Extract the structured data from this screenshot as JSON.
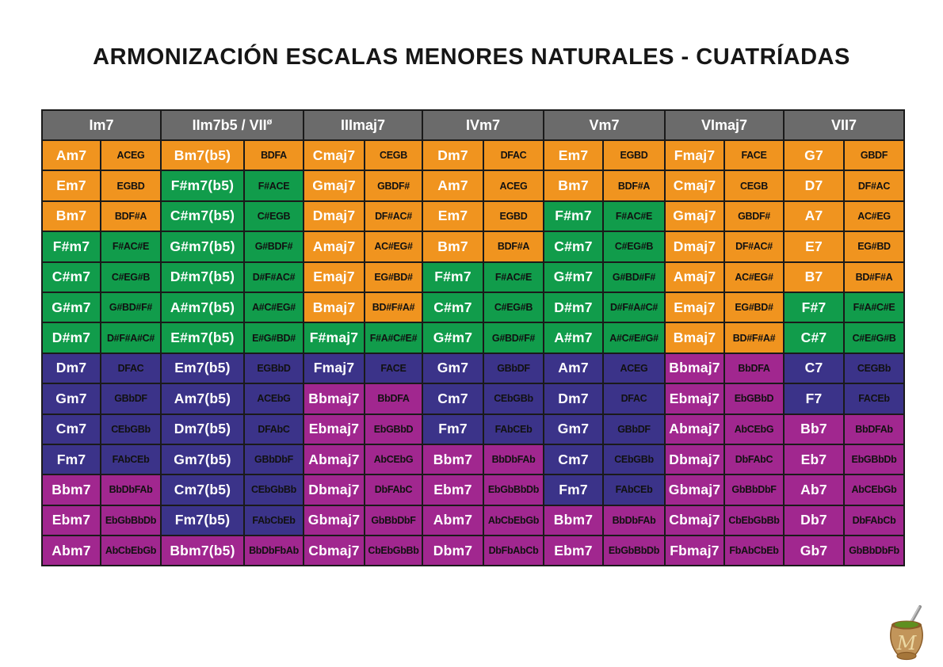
{
  "title": "ARMONIZACIÓN ESCALAS MENORES NATURALES - CUATRÍADAS",
  "colors": {
    "orange": "#F0941F",
    "green": "#119C4B",
    "indigo": "#3B3389",
    "magenta": "#A1278F",
    "header_bg": "#6B6B6B",
    "header_text": "#FFFFFF",
    "chord_text": "#FFFFFF",
    "notes_text": "#111111",
    "border": "#1A1A1A",
    "background": "#FFFFFF"
  },
  "logo": {
    "letter": "M",
    "description": "mate-gourd-with-bombilla"
  },
  "chart_data": {
    "type": "table",
    "title": "ARMONIZACIÓN ESCALAS MENORES NATURALES - CUATRÍADAS",
    "column_groups": [
      {
        "label": "Im7",
        "sup": ""
      },
      {
        "label": "IIm7b5 / VII",
        "sup": "ø"
      },
      {
        "label": "IIImaj7",
        "sup": ""
      },
      {
        "label": "IVm7",
        "sup": ""
      },
      {
        "label": "Vm7",
        "sup": ""
      },
      {
        "label": "VImaj7",
        "sup": ""
      },
      {
        "label": "VII7",
        "sup": ""
      }
    ],
    "subcolumns_per_group": [
      "chord",
      "notes"
    ],
    "color_legend": {
      "orange": "natural-root chord (sharp keys)",
      "green": "sharp-root chord",
      "indigo": "natural-root chord (flat keys)",
      "magenta": "flat-root chord"
    },
    "rows": [
      [
        {
          "chord": "Am7",
          "notes": "ACEG",
          "color": "orange"
        },
        {
          "chord": "Bm7(b5)",
          "notes": "BDFA",
          "color": "orange"
        },
        {
          "chord": "Cmaj7",
          "notes": "CEGB",
          "color": "orange"
        },
        {
          "chord": "Dm7",
          "notes": "DFAC",
          "color": "orange"
        },
        {
          "chord": "Em7",
          "notes": "EGBD",
          "color": "orange"
        },
        {
          "chord": "Fmaj7",
          "notes": "FACE",
          "color": "orange"
        },
        {
          "chord": "G7",
          "notes": "GBDF",
          "color": "orange"
        }
      ],
      [
        {
          "chord": "Em7",
          "notes": "EGBD",
          "color": "orange"
        },
        {
          "chord": "F#m7(b5)",
          "notes": "F#ACE",
          "color": "green"
        },
        {
          "chord": "Gmaj7",
          "notes": "GBDF#",
          "color": "orange"
        },
        {
          "chord": "Am7",
          "notes": "ACEG",
          "color": "orange"
        },
        {
          "chord": "Bm7",
          "notes": "BDF#A",
          "color": "orange"
        },
        {
          "chord": "Cmaj7",
          "notes": "CEGB",
          "color": "orange"
        },
        {
          "chord": "D7",
          "notes": "DF#AC",
          "color": "orange"
        }
      ],
      [
        {
          "chord": "Bm7",
          "notes": "BDF#A",
          "color": "orange"
        },
        {
          "chord": "C#m7(b5)",
          "notes": "C#EGB",
          "color": "green"
        },
        {
          "chord": "Dmaj7",
          "notes": "DF#AC#",
          "color": "orange"
        },
        {
          "chord": "Em7",
          "notes": "EGBD",
          "color": "orange"
        },
        {
          "chord": "F#m7",
          "notes": "F#AC#E",
          "color": "green"
        },
        {
          "chord": "Gmaj7",
          "notes": "GBDF#",
          "color": "orange"
        },
        {
          "chord": "A7",
          "notes": "AC#EG",
          "color": "orange"
        }
      ],
      [
        {
          "chord": "F#m7",
          "notes": "F#AC#E",
          "color": "green"
        },
        {
          "chord": "G#m7(b5)",
          "notes": "G#BDF#",
          "color": "green"
        },
        {
          "chord": "Amaj7",
          "notes": "AC#EG#",
          "color": "orange"
        },
        {
          "chord": "Bm7",
          "notes": "BDF#A",
          "color": "orange"
        },
        {
          "chord": "C#m7",
          "notes": "C#EG#B",
          "color": "green"
        },
        {
          "chord": "Dmaj7",
          "notes": "DF#AC#",
          "color": "orange"
        },
        {
          "chord": "E7",
          "notes": "EG#BD",
          "color": "orange"
        }
      ],
      [
        {
          "chord": "C#m7",
          "notes": "C#EG#B",
          "color": "green"
        },
        {
          "chord": "D#m7(b5)",
          "notes": "D#F#AC#",
          "color": "green"
        },
        {
          "chord": "Emaj7",
          "notes": "EG#BD#",
          "color": "orange"
        },
        {
          "chord": "F#m7",
          "notes": "F#AC#E",
          "color": "green"
        },
        {
          "chord": "G#m7",
          "notes": "G#BD#F#",
          "color": "green"
        },
        {
          "chord": "Amaj7",
          "notes": "AC#EG#",
          "color": "orange"
        },
        {
          "chord": "B7",
          "notes": "BD#F#A",
          "color": "orange"
        }
      ],
      [
        {
          "chord": "G#m7",
          "notes": "G#BD#F#",
          "color": "green"
        },
        {
          "chord": "A#m7(b5)",
          "notes": "A#C#EG#",
          "color": "green"
        },
        {
          "chord": "Bmaj7",
          "notes": "BD#F#A#",
          "color": "orange"
        },
        {
          "chord": "C#m7",
          "notes": "C#EG#B",
          "color": "green"
        },
        {
          "chord": "D#m7",
          "notes": "D#F#A#C#",
          "color": "green"
        },
        {
          "chord": "Emaj7",
          "notes": "EG#BD#",
          "color": "orange"
        },
        {
          "chord": "F#7",
          "notes": "F#A#C#E",
          "color": "green"
        }
      ],
      [
        {
          "chord": "D#m7",
          "notes": "D#F#A#C#",
          "color": "green"
        },
        {
          "chord": "E#m7(b5)",
          "notes": "E#G#BD#",
          "color": "green"
        },
        {
          "chord": "F#maj7",
          "notes": "F#A#C#E#",
          "color": "green"
        },
        {
          "chord": "G#m7",
          "notes": "G#BD#F#",
          "color": "green"
        },
        {
          "chord": "A#m7",
          "notes": "A#C#E#G#",
          "color": "green"
        },
        {
          "chord": "Bmaj7",
          "notes": "BD#F#A#",
          "color": "orange"
        },
        {
          "chord": "C#7",
          "notes": "C#E#G#B",
          "color": "green"
        }
      ],
      [
        {
          "chord": "Dm7",
          "notes": "DFAC",
          "color": "indigo"
        },
        {
          "chord": "Em7(b5)",
          "notes": "EGBbD",
          "color": "indigo"
        },
        {
          "chord": "Fmaj7",
          "notes": "FACE",
          "color": "indigo"
        },
        {
          "chord": "Gm7",
          "notes": "GBbDF",
          "color": "indigo"
        },
        {
          "chord": "Am7",
          "notes": "ACEG",
          "color": "indigo"
        },
        {
          "chord": "Bbmaj7",
          "notes": "BbDFA",
          "color": "magenta"
        },
        {
          "chord": "C7",
          "notes": "CEGBb",
          "color": "indigo"
        }
      ],
      [
        {
          "chord": "Gm7",
          "notes": "GBbDF",
          "color": "indigo"
        },
        {
          "chord": "Am7(b5)",
          "notes": "ACEbG",
          "color": "indigo"
        },
        {
          "chord": "Bbmaj7",
          "notes": "BbDFA",
          "color": "magenta"
        },
        {
          "chord": "Cm7",
          "notes": "CEbGBb",
          "color": "indigo"
        },
        {
          "chord": "Dm7",
          "notes": "DFAC",
          "color": "indigo"
        },
        {
          "chord": "Ebmaj7",
          "notes": "EbGBbD",
          "color": "magenta"
        },
        {
          "chord": "F7",
          "notes": "FACEb",
          "color": "indigo"
        }
      ],
      [
        {
          "chord": "Cm7",
          "notes": "CEbGBb",
          "color": "indigo"
        },
        {
          "chord": "Dm7(b5)",
          "notes": "DFAbC",
          "color": "indigo"
        },
        {
          "chord": "Ebmaj7",
          "notes": "EbGBbD",
          "color": "magenta"
        },
        {
          "chord": "Fm7",
          "notes": "FAbCEb",
          "color": "indigo"
        },
        {
          "chord": "Gm7",
          "notes": "GBbDF",
          "color": "indigo"
        },
        {
          "chord": "Abmaj7",
          "notes": "AbCEbG",
          "color": "magenta"
        },
        {
          "chord": "Bb7",
          "notes": "BbDFAb",
          "color": "magenta"
        }
      ],
      [
        {
          "chord": "Fm7",
          "notes": "FAbCEb",
          "color": "indigo"
        },
        {
          "chord": "Gm7(b5)",
          "notes": "GBbDbF",
          "color": "indigo"
        },
        {
          "chord": "Abmaj7",
          "notes": "AbCEbG",
          "color": "magenta"
        },
        {
          "chord": "Bbm7",
          "notes": "BbDbFAb",
          "color": "magenta"
        },
        {
          "chord": "Cm7",
          "notes": "CEbGBb",
          "color": "indigo"
        },
        {
          "chord": "Dbmaj7",
          "notes": "DbFAbC",
          "color": "magenta"
        },
        {
          "chord": "Eb7",
          "notes": "EbGBbDb",
          "color": "magenta"
        }
      ],
      [
        {
          "chord": "Bbm7",
          "notes": "BbDbFAb",
          "color": "magenta"
        },
        {
          "chord": "Cm7(b5)",
          "notes": "CEbGbBb",
          "color": "indigo"
        },
        {
          "chord": "Dbmaj7",
          "notes": "DbFAbC",
          "color": "magenta"
        },
        {
          "chord": "Ebm7",
          "notes": "EbGbBbDb",
          "color": "magenta"
        },
        {
          "chord": "Fm7",
          "notes": "FAbCEb",
          "color": "indigo"
        },
        {
          "chord": "Gbmaj7",
          "notes": "GbBbDbF",
          "color": "magenta"
        },
        {
          "chord": "Ab7",
          "notes": "AbCEbGb",
          "color": "magenta"
        }
      ],
      [
        {
          "chord": "Ebm7",
          "notes": "EbGbBbDb",
          "color": "magenta"
        },
        {
          "chord": "Fm7(b5)",
          "notes": "FAbCbEb",
          "color": "indigo"
        },
        {
          "chord": "Gbmaj7",
          "notes": "GbBbDbF",
          "color": "magenta"
        },
        {
          "chord": "Abm7",
          "notes": "AbCbEbGb",
          "color": "magenta"
        },
        {
          "chord": "Bbm7",
          "notes": "BbDbFAb",
          "color": "magenta"
        },
        {
          "chord": "Cbmaj7",
          "notes": "CbEbGbBb",
          "color": "magenta"
        },
        {
          "chord": "Db7",
          "notes": "DbFAbCb",
          "color": "magenta"
        }
      ],
      [
        {
          "chord": "Abm7",
          "notes": "AbCbEbGb",
          "color": "magenta"
        },
        {
          "chord": "Bbm7(b5)",
          "notes": "BbDbFbAb",
          "color": "magenta"
        },
        {
          "chord": "Cbmaj7",
          "notes": "CbEbGbBb",
          "color": "magenta"
        },
        {
          "chord": "Dbm7",
          "notes": "DbFbAbCb",
          "color": "magenta"
        },
        {
          "chord": "Ebm7",
          "notes": "EbGbBbDb",
          "color": "magenta"
        },
        {
          "chord": "Fbmaj7",
          "notes": "FbAbCbEb",
          "color": "magenta"
        },
        {
          "chord": "Gb7",
          "notes": "GbBbDbFb",
          "color": "magenta"
        }
      ]
    ]
  }
}
